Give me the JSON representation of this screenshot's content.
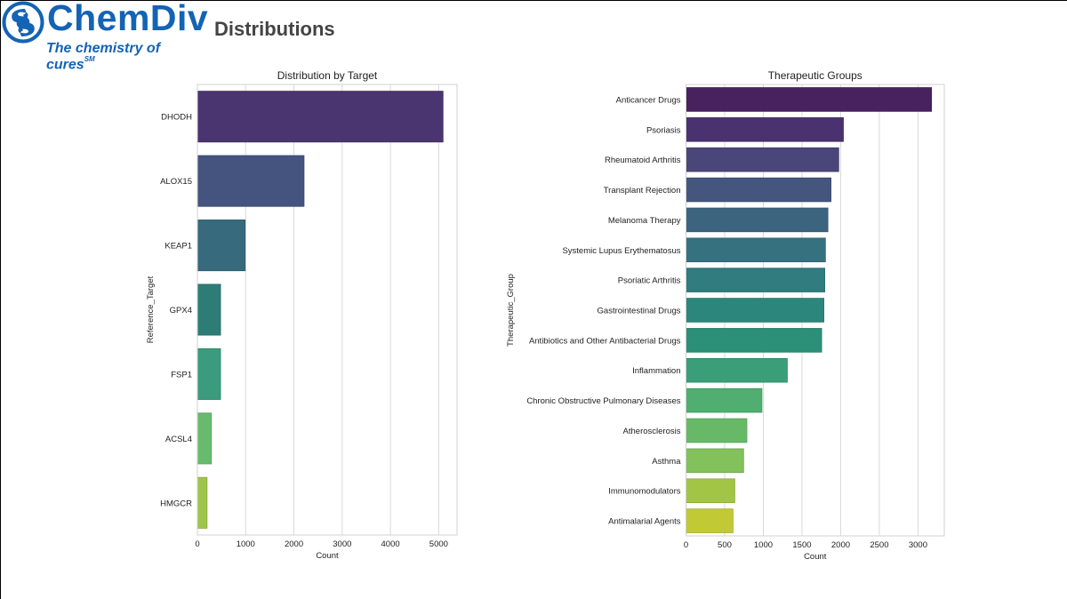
{
  "header": {
    "logo_name": "ChemDiv",
    "logo_tagline": "The chemistry of cures",
    "logo_tagline_mark": "SM",
    "page_title": "Distributions",
    "brand_color": "#1463b5"
  },
  "chart_data": [
    {
      "type": "bar",
      "orientation": "horizontal",
      "title": "Distribution by Target",
      "xlabel": "Count",
      "ylabel": "Reference_Target",
      "xlim": [
        0,
        5380
      ],
      "xticks": [
        0,
        1000,
        2000,
        3000,
        4000,
        5000
      ],
      "grid": true,
      "categories": [
        "DHODH",
        "ALOX15",
        "KEAP1",
        "GPX4",
        "FSP1",
        "ACSL4",
        "HMGCR"
      ],
      "values": [
        5090,
        2210,
        990,
        480,
        480,
        290,
        200
      ],
      "colors": [
        "#4a3570",
        "#44547e",
        "#366a7c",
        "#2d7d76",
        "#3a9c7c",
        "#67bb6d",
        "#a0c448"
      ]
    },
    {
      "type": "bar",
      "orientation": "horizontal",
      "title": "Therapeutic Groups",
      "xlabel": "Count",
      "ylabel": "Therapeutic_Group",
      "xlim": [
        0,
        3340
      ],
      "xticks": [
        0,
        500,
        1000,
        1500,
        2000,
        2500,
        3000
      ],
      "grid": true,
      "categories": [
        "Anticancer Drugs",
        "Psoriasis",
        "Rheumatoid Arthritis",
        "Transplant Rejection",
        "Melanoma Therapy",
        "Systemic Lupus Erythematosus",
        "Psoriatic Arthritis",
        "Gastrointestinal Drugs",
        "Antibiotics and Other Antibacterial Drugs",
        "Inflammation",
        "Chronic Obstructive Pulmonary Diseases",
        "Atherosclerosis",
        "Asthma",
        "Immunomodulators",
        "Antimalarial Agents"
      ],
      "values": [
        3175,
        2035,
        1975,
        1875,
        1835,
        1803,
        1795,
        1783,
        1754,
        1310,
        982,
        787,
        745,
        631,
        608
      ],
      "colors": [
        "#48215f",
        "#4a3170",
        "#4a4679",
        "#45567e",
        "#3d647f",
        "#367180",
        "#307c7e",
        "#2c867c",
        "#2c9078",
        "#3a9e78",
        "#4fae70",
        "#67b968",
        "#82c15c",
        "#a3c546",
        "#c1ca34"
      ]
    }
  ]
}
